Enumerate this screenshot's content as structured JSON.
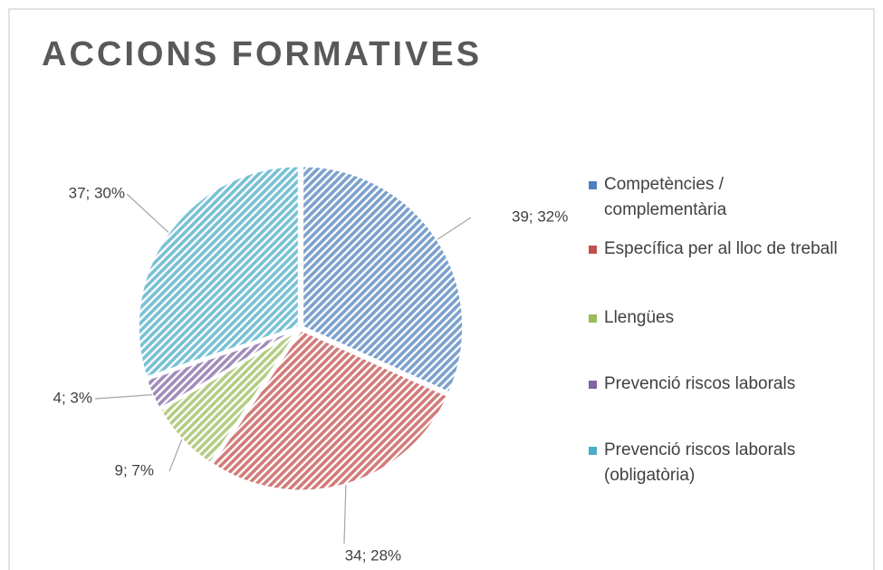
{
  "chart_data": {
    "type": "pie",
    "title": "ACCIONS FORMATIVES",
    "categories": [
      "Competències / complementària",
      "Específica per al lloc de treball",
      "Llengües",
      "Prevenció riscos laborals",
      "Prevenció riscos laborals (obligatòria)"
    ],
    "values": [
      39,
      34,
      9,
      4,
      37
    ],
    "value_labels": [
      "39; 32%",
      "34; 28%",
      "9; 7%",
      "4; 3%",
      "37; 30%"
    ],
    "colors": [
      "#4f81bd",
      "#c0504d",
      "#9bbb59",
      "#8064a2",
      "#4bacc6"
    ],
    "legend": "right"
  }
}
